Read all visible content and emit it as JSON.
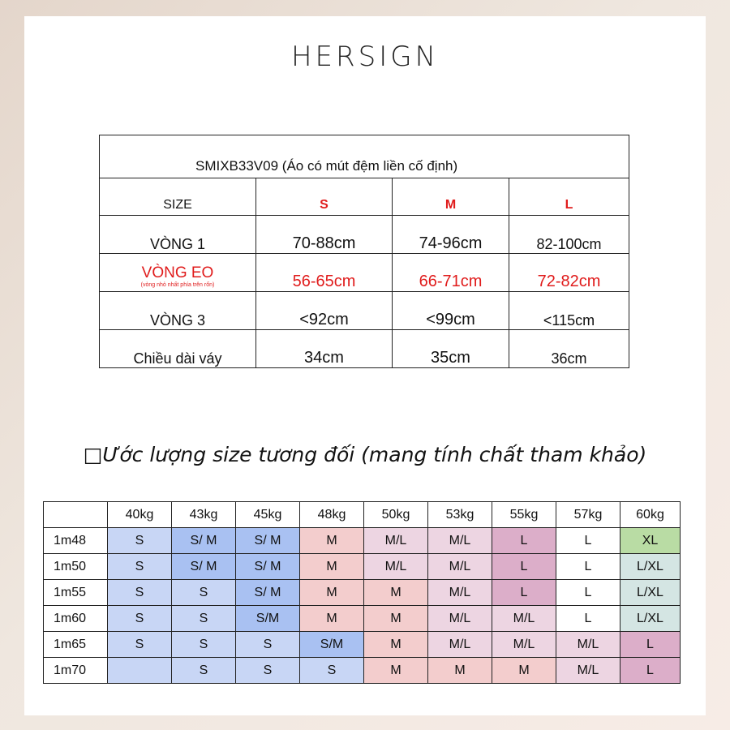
{
  "brand": "HERSIGN",
  "size_table": {
    "code": "SMIXB33V09 (Áo có mút đệm liền cố định)",
    "headers": [
      "SIZE",
      "S",
      "M",
      "L"
    ],
    "rows": [
      {
        "label": "VÒNG 1",
        "note": "",
        "values": [
          "70-88cm",
          "74-96cm",
          "82-100cm"
        ]
      },
      {
        "label": "VÒNG EO",
        "note": "(vòng nhỏ nhất phía trên rốn)",
        "values": [
          "56-65cm",
          "66-71cm",
          "72-82cm"
        ]
      },
      {
        "label": "VÒNG 3",
        "note": "",
        "values": [
          "<92cm",
          "<99cm",
          "<115cm"
        ]
      },
      {
        "label": "Chiều dài váy",
        "note": "",
        "values": [
          "34cm",
          "35cm",
          "36cm"
        ]
      }
    ],
    "colors": {
      "accent_red": "#e01c1c"
    }
  },
  "estimate": {
    "icon": "box-glyph",
    "title": "Ước lượng size tương đối (mang tính chất tham khảo)",
    "weights": [
      "40kg",
      "43kg",
      "45kg",
      "48kg",
      "50kg",
      "53kg",
      "55kg",
      "57kg",
      "60kg"
    ],
    "rows": [
      {
        "height": "1m48",
        "cells": [
          "S",
          "S/ M",
          "S/ M",
          "M",
          "M/L",
          "M/L",
          "L",
          "L",
          "XL"
        ]
      },
      {
        "height": "1m50",
        "cells": [
          "S",
          "S/ M",
          "S/ M",
          "M",
          "M/L",
          "M/L",
          "L",
          "L",
          "L/XL"
        ]
      },
      {
        "height": "1m55",
        "cells": [
          "S",
          "S",
          "S/ M",
          "M",
          "M",
          "M/L",
          "L",
          "L",
          "L/XL"
        ]
      },
      {
        "height": "1m60",
        "cells": [
          "S",
          "S",
          "S/M",
          "M",
          "M",
          "M/L",
          "M/L",
          "L",
          "L/XL"
        ]
      },
      {
        "height": "1m65",
        "cells": [
          "S",
          "S",
          "S",
          "S/M",
          "M",
          "M/L",
          "M/L",
          "M/L",
          "L"
        ]
      },
      {
        "height": "1m70",
        "cells": [
          "",
          "S",
          "S",
          "S",
          "M",
          "M",
          "M",
          "M/L",
          "L"
        ]
      }
    ],
    "colors": {
      "blue": "#c8d6f5",
      "blue_strong": "#a9c1f2",
      "salmon": "#f3cdcd",
      "pink": "#edd5e2",
      "mauve": "#dcaec9",
      "green": "#b9dca4",
      "teal": "#d4e5e3"
    }
  }
}
